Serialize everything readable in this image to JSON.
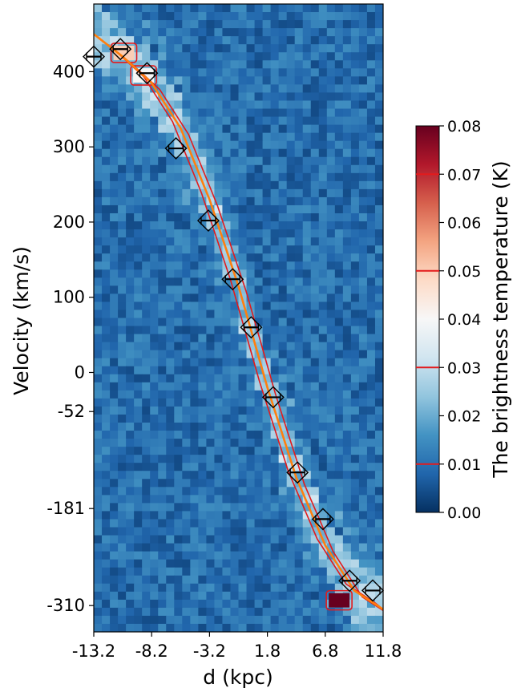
{
  "chart_data": {
    "type": "heatmap",
    "title": "",
    "xlabel": "d (kpc)",
    "ylabel": "Velocity (km/s)",
    "xlim": [
      -13.2,
      11.8
    ],
    "ylim": [
      -345,
      490
    ],
    "x_tick_labels": [
      "-13.2",
      "-8.2",
      "-3.2",
      "1.8",
      "6.8",
      "11.8"
    ],
    "x_tick_values": [
      -13.2,
      -8.2,
      -3.2,
      1.8,
      6.8,
      11.8
    ],
    "y_tick_labels": [
      "400",
      "300",
      "200",
      "100",
      "0",
      "-52",
      "-181",
      "-310"
    ],
    "y_tick_values": [
      400,
      300,
      200,
      100,
      0,
      -52,
      -181,
      -310
    ],
    "colormap": "RdBu_r",
    "colorbar": {
      "label": "The brightness temperature (K)",
      "range": [
        0.0,
        0.08
      ],
      "tick_labels": [
        "0.00",
        "0.01",
        "0.02",
        "0.03",
        "0.04",
        "0.05",
        "0.06",
        "0.07",
        "0.08"
      ],
      "tick_values": [
        0.0,
        0.01,
        0.02,
        0.03,
        0.04,
        0.05,
        0.06,
        0.07,
        0.08
      ],
      "contour_levels": [
        0.01,
        0.03,
        0.05,
        0.07
      ]
    },
    "fit_curve": {
      "color": "#ff7f0e",
      "points": [
        [
          -13.2,
          450
        ],
        [
          -10.7,
          420
        ],
        [
          -8.2,
          385
        ],
        [
          -5.7,
          325
        ],
        [
          -3.2,
          230
        ],
        [
          -0.7,
          115
        ],
        [
          1.8,
          -20
        ],
        [
          4.3,
          -140
        ],
        [
          6.8,
          -230
        ],
        [
          9.3,
          -290
        ],
        [
          11.8,
          -315
        ]
      ]
    },
    "markers": [
      {
        "x": -13.2,
        "y": 420
      },
      {
        "x": -10.9,
        "y": 430
      },
      {
        "x": -8.6,
        "y": 398
      },
      {
        "x": -6.1,
        "y": 298
      },
      {
        "x": -3.3,
        "y": 202
      },
      {
        "x": -1.2,
        "y": 124
      },
      {
        "x": 0.4,
        "y": 60
      },
      {
        "x": 2.3,
        "y": -33
      },
      {
        "x": 4.4,
        "y": -133
      },
      {
        "x": 6.6,
        "y": -195
      },
      {
        "x": 8.9,
        "y": -277
      },
      {
        "x": 10.9,
        "y": -290
      }
    ],
    "hotspots": [
      {
        "x": 8.0,
        "y": -303,
        "value": 0.08
      },
      {
        "x": -10.6,
        "y": 425,
        "value": 0.05
      },
      {
        "x": -8.9,
        "y": 395,
        "value": 0.04
      }
    ],
    "legend": "none",
    "grid": false
  }
}
